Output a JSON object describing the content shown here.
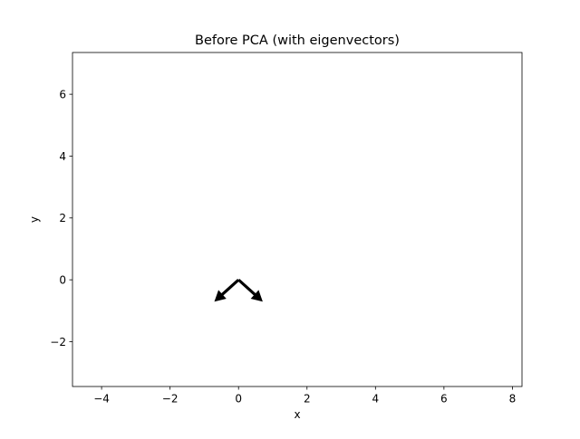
{
  "chart_data": {
    "type": "quiver",
    "title": "Before PCA (with eigenvectors)",
    "xlabel": "x",
    "ylabel": "y",
    "xlim": [
      -4.85,
      8.28
    ],
    "ylim": [
      -3.45,
      7.35
    ],
    "xticks": [
      -4,
      -2,
      0,
      2,
      4,
      6,
      8
    ],
    "yticks": [
      -2,
      0,
      2,
      4,
      6
    ],
    "xtick_labels": [
      "−4",
      "−2",
      "0",
      "2",
      "4",
      "6",
      "8"
    ],
    "ytick_labels": [
      "−2",
      "0",
      "2",
      "4",
      "6"
    ],
    "grid": false,
    "arrows": [
      {
        "origin": [
          0,
          0
        ],
        "vector": [
          -0.707,
          -0.707
        ]
      },
      {
        "origin": [
          0,
          0
        ],
        "vector": [
          0.707,
          -0.707
        ]
      }
    ],
    "arrow_color": "#000000"
  }
}
